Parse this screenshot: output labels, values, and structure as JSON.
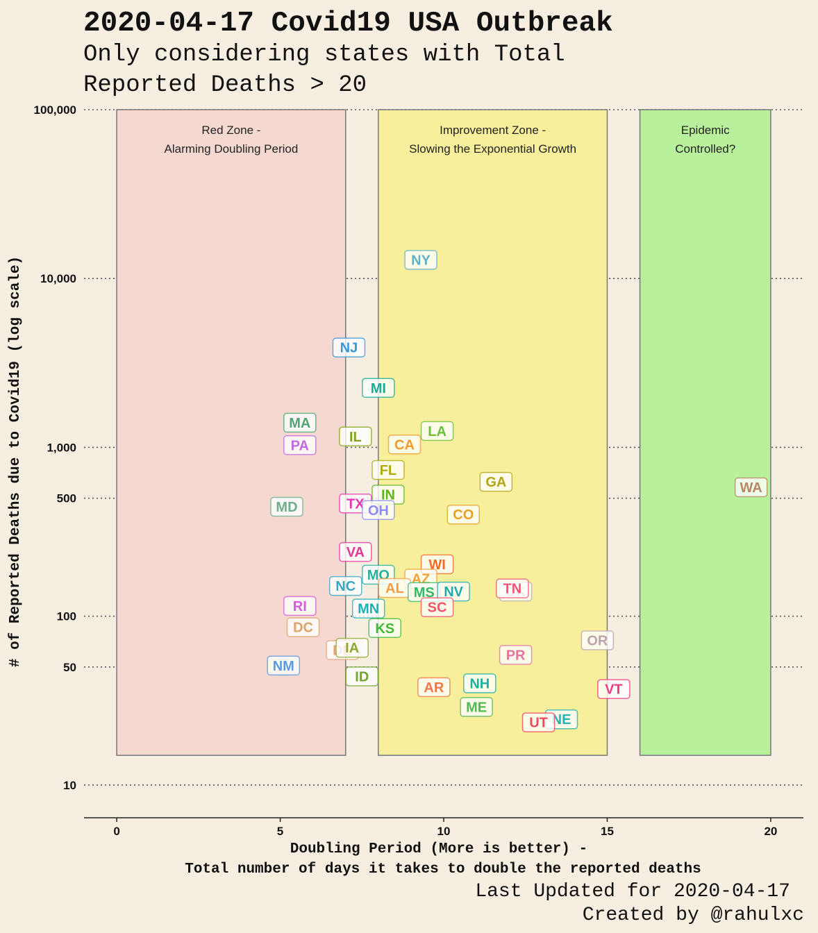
{
  "chart_data": {
    "type": "scatter",
    "title": "2020-04-17 Covid19 USA Outbreak",
    "subtitle_lines": [
      "Only considering states with Total",
      "Reported Deaths > 20"
    ],
    "xlabel_lines": [
      "Doubling Period (More is better) -",
      "Total number of days it takes to double the reported deaths"
    ],
    "ylabel": "# of Reported Deaths due to Covid19 (log scale)",
    "caption_lines": [
      "Last Updated for 2020-04-17",
      "Created by @rahulxc"
    ],
    "x_scale": "linear",
    "y_scale": "log",
    "xlim": [
      -1,
      21
    ],
    "ylim": [
      6.4,
      100000
    ],
    "x_ticks": [
      0,
      5,
      10,
      15,
      20
    ],
    "x_tick_labels": [
      "0",
      "5",
      "10",
      "15",
      "20"
    ],
    "y_ticks": [
      10,
      50,
      100,
      500,
      1000,
      10000,
      100000
    ],
    "y_tick_labels": [
      "10",
      "50",
      "100",
      "500",
      "1,000",
      "10,000",
      "100,000"
    ],
    "grid": "horizontal dotted",
    "zones": [
      {
        "lines": [
          "Red Zone -",
          "Alarming Doubling Period"
        ],
        "x0": 0,
        "x1": 7,
        "y0": 15,
        "y1": 100000,
        "fill": "#f5d9d0"
      },
      {
        "lines": [
          "Improvement Zone -",
          "Slowing the Exponential Growth"
        ],
        "x0": 8,
        "x1": 15,
        "y0": 15,
        "y1": 100000,
        "fill": "#f7ef9b"
      },
      {
        "lines": [
          "Epidemic",
          "Controlled?"
        ],
        "x0": 16,
        "x1": 20,
        "y0": 15,
        "y1": 100000,
        "fill": "#b8f09c"
      }
    ],
    "points": [
      {
        "label": "NY",
        "x": 9.3,
        "y": 12900,
        "color": "#5bb2c9"
      },
      {
        "label": "NJ",
        "x": 7.1,
        "y": 3900,
        "color": "#3a98d6"
      },
      {
        "label": "MI",
        "x": 8.0,
        "y": 2250,
        "color": "#1aad95"
      },
      {
        "label": "MA",
        "x": 5.6,
        "y": 1400,
        "color": "#4fa576"
      },
      {
        "label": "PA",
        "x": 5.6,
        "y": 1030,
        "color": "#c26ae0"
      },
      {
        "label": "IL",
        "x": 7.3,
        "y": 1160,
        "color": "#84a517"
      },
      {
        "label": "LA",
        "x": 9.8,
        "y": 1250,
        "color": "#6bc03a"
      },
      {
        "label": "CA",
        "x": 8.8,
        "y": 1040,
        "color": "#f39a2a"
      },
      {
        "label": "FL",
        "x": 8.3,
        "y": 735,
        "color": "#aeaa14"
      },
      {
        "label": "GA",
        "x": 11.6,
        "y": 625,
        "color": "#b4a41a"
      },
      {
        "label": "WA",
        "x": 19.4,
        "y": 580,
        "color": "#b88566"
      },
      {
        "label": "IN",
        "x": 8.3,
        "y": 525,
        "color": "#5cb71c"
      },
      {
        "label": "TX",
        "x": 7.3,
        "y": 465,
        "color": "#e833b6"
      },
      {
        "label": "OH",
        "x": 8.0,
        "y": 425,
        "color": "#8b8df0"
      },
      {
        "label": "MD",
        "x": 5.2,
        "y": 445,
        "color": "#6fae8e"
      },
      {
        "label": "CO",
        "x": 10.6,
        "y": 400,
        "color": "#e6a125"
      },
      {
        "label": "VA",
        "x": 7.3,
        "y": 240,
        "color": "#e8379a"
      },
      {
        "label": "WI",
        "x": 9.8,
        "y": 203,
        "color": "#f36a2a"
      },
      {
        "label": "MO",
        "x": 8.0,
        "y": 176,
        "color": "#23b39f"
      },
      {
        "label": "AZ",
        "x": 9.3,
        "y": 167,
        "color": "#f3a23a"
      },
      {
        "label": "NC",
        "x": 7.0,
        "y": 151,
        "color": "#3aa6c6"
      },
      {
        "label": "AL",
        "x": 8.5,
        "y": 147,
        "color": "#f59c4a"
      },
      {
        "label": "MS",
        "x": 9.4,
        "y": 139,
        "color": "#30bb68"
      },
      {
        "label": "OK",
        "x": 12.2,
        "y": 140,
        "color": "#b9b2b0"
      },
      {
        "label": "NV",
        "x": 10.3,
        "y": 140,
        "color": "#22a9b0"
      },
      {
        "label": "TN",
        "x": 12.1,
        "y": 146,
        "color": "#f0547a"
      },
      {
        "label": "SC",
        "x": 9.8,
        "y": 113,
        "color": "#f5546a"
      },
      {
        "label": "RI",
        "x": 5.6,
        "y": 115,
        "color": "#d85cdb"
      },
      {
        "label": "MN",
        "x": 7.7,
        "y": 111,
        "color": "#1eb0b8"
      },
      {
        "label": "DC",
        "x": 5.7,
        "y": 86,
        "color": "#dca46c"
      },
      {
        "label": "KS",
        "x": 8.2,
        "y": 85,
        "color": "#3fba36"
      },
      {
        "label": "DE",
        "x": 6.9,
        "y": 63,
        "color": "#e2a47c"
      },
      {
        "label": "IA",
        "x": 7.2,
        "y": 65,
        "color": "#8fa72e"
      },
      {
        "label": "OR",
        "x": 14.7,
        "y": 72,
        "color": "#bba4b0"
      },
      {
        "label": "PR",
        "x": 12.2,
        "y": 59,
        "color": "#e474a4"
      },
      {
        "label": "NM",
        "x": 5.1,
        "y": 51,
        "color": "#5c9ae0"
      },
      {
        "label": "ID",
        "x": 7.5,
        "y": 44,
        "color": "#72a630"
      },
      {
        "label": "AR",
        "x": 9.7,
        "y": 38,
        "color": "#f2774a"
      },
      {
        "label": "NH",
        "x": 11.1,
        "y": 40,
        "color": "#1bb1a5"
      },
      {
        "label": "VT",
        "x": 15.2,
        "y": 37,
        "color": "#ee3d84"
      },
      {
        "label": "ME",
        "x": 11.0,
        "y": 29,
        "color": "#52b954"
      },
      {
        "label": "NE",
        "x": 13.6,
        "y": 24.5,
        "color": "#21b2b8"
      },
      {
        "label": "UT",
        "x": 12.9,
        "y": 23.5,
        "color": "#f24a5a"
      }
    ]
  }
}
